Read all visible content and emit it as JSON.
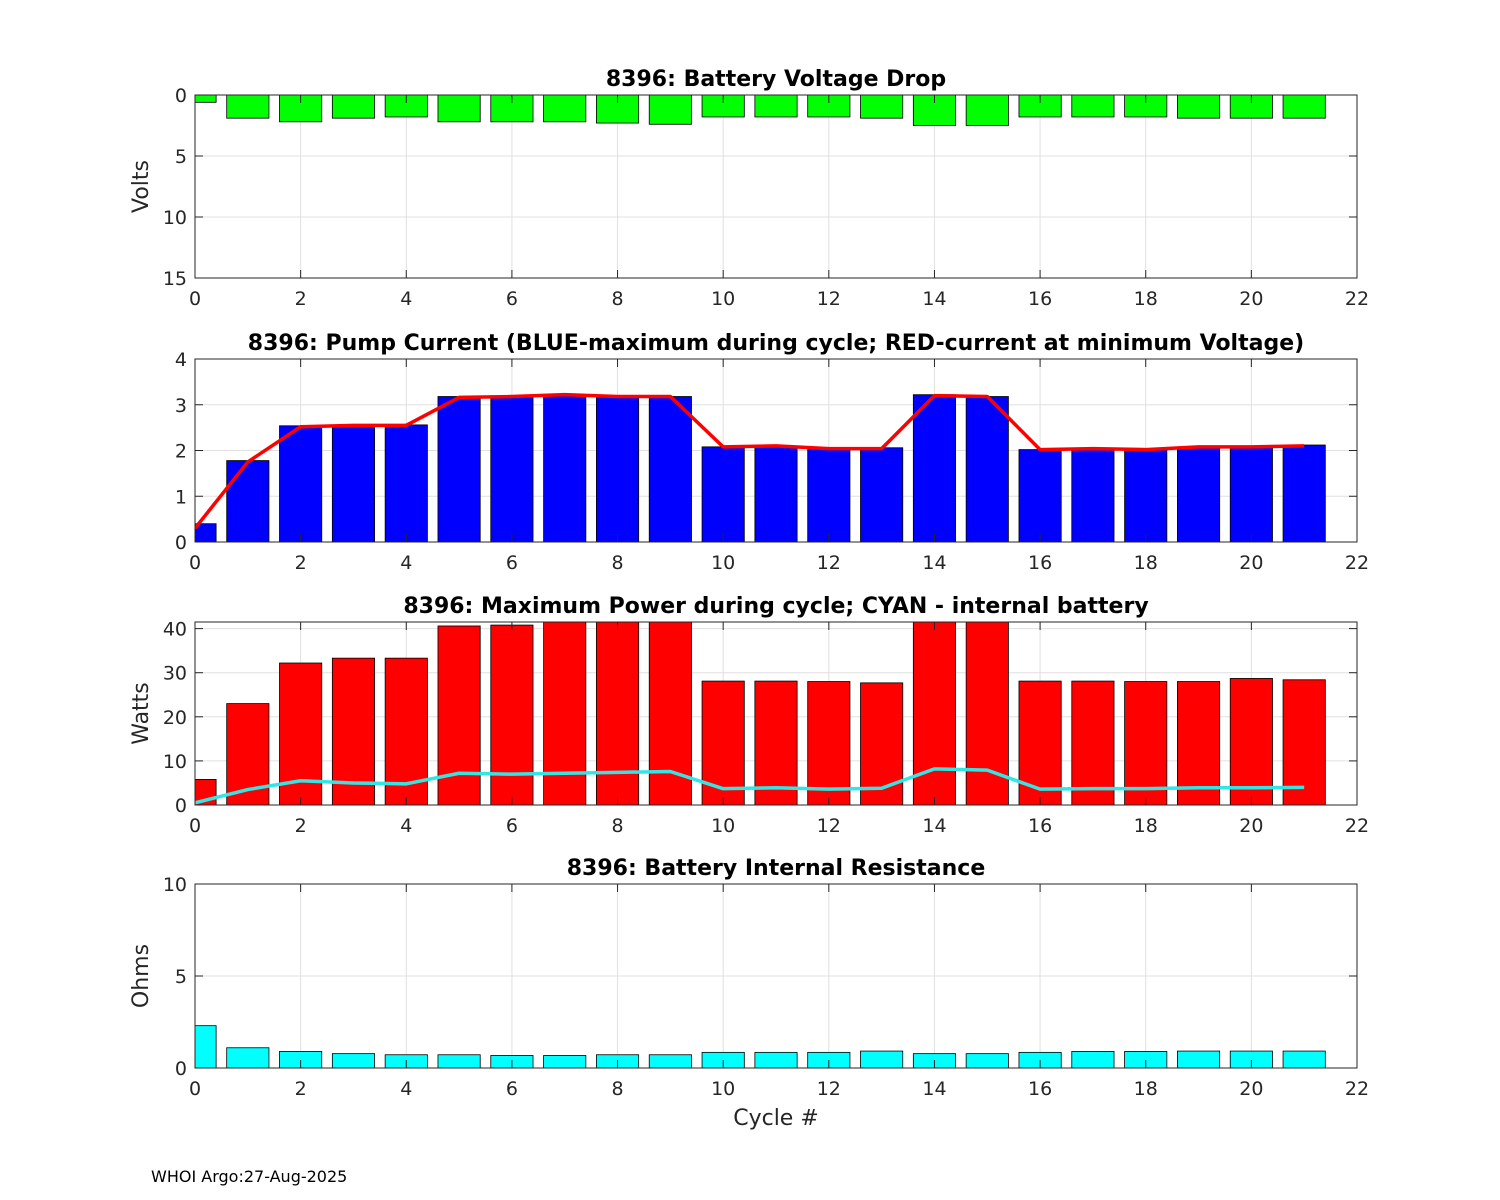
{
  "chart_data": [
    {
      "type": "bar",
      "title": "8396: Battery Voltage Drop",
      "xlabel": "",
      "ylabel": "Volts",
      "xlim": [
        0,
        22
      ],
      "ylim": [
        0,
        15
      ],
      "y_reversed": true,
      "xticks": [
        0,
        2,
        4,
        6,
        8,
        10,
        12,
        14,
        16,
        18,
        20,
        22
      ],
      "yticks": [
        0,
        5,
        10,
        15
      ],
      "grid": true,
      "bar_color": "#00ff00",
      "x": [
        0,
        1,
        2,
        3,
        4,
        5,
        6,
        7,
        8,
        9,
        10,
        11,
        12,
        13,
        14,
        15,
        16,
        17,
        18,
        19,
        20,
        21
      ],
      "values": [
        0.6,
        1.9,
        2.2,
        1.9,
        1.8,
        2.2,
        2.2,
        2.2,
        2.3,
        2.4,
        1.8,
        1.8,
        1.8,
        1.9,
        2.5,
        2.5,
        1.8,
        1.8,
        1.8,
        1.9,
        1.9,
        1.9
      ]
    },
    {
      "type": "bar",
      "title": "8396: Pump Current (BLUE-maximum during cycle; RED-current at minimum Voltage)",
      "xlabel": "",
      "ylabel": "",
      "xlim": [
        0,
        22
      ],
      "ylim": [
        0,
        4
      ],
      "xticks": [
        0,
        2,
        4,
        6,
        8,
        10,
        12,
        14,
        16,
        18,
        20,
        22
      ],
      "yticks": [
        0,
        1,
        2,
        3,
        4
      ],
      "grid": true,
      "bar_color": "#0000ff",
      "line_color": "#ff0000",
      "x": [
        0,
        1,
        2,
        3,
        4,
        5,
        6,
        7,
        8,
        9,
        10,
        11,
        12,
        13,
        14,
        15,
        16,
        17,
        18,
        19,
        20,
        21
      ],
      "series": [
        {
          "name": "maximum during cycle",
          "kind": "bar",
          "values": [
            0.4,
            1.78,
            2.54,
            2.55,
            2.56,
            3.18,
            3.18,
            3.22,
            3.18,
            3.18,
            2.08,
            2.1,
            2.04,
            2.06,
            3.22,
            3.18,
            2.02,
            2.04,
            2.02,
            2.08,
            2.1,
            2.12
          ]
        },
        {
          "name": "current at minimum Voltage",
          "kind": "line",
          "values": [
            0.3,
            1.75,
            2.52,
            2.55,
            2.55,
            3.16,
            3.18,
            3.22,
            3.18,
            3.18,
            2.08,
            2.1,
            2.04,
            2.04,
            3.2,
            3.18,
            2.02,
            2.04,
            2.02,
            2.08,
            2.08,
            2.1
          ]
        }
      ]
    },
    {
      "type": "bar",
      "title": "8396: Maximum Power during cycle; CYAN - internal battery",
      "xlabel": "",
      "ylabel": "Watts",
      "xlim": [
        0,
        22
      ],
      "ylim": [
        0,
        41.5
      ],
      "xticks": [
        0,
        2,
        4,
        6,
        8,
        10,
        12,
        14,
        16,
        18,
        20,
        22
      ],
      "yticks": [
        0,
        10,
        20,
        30,
        40
      ],
      "grid": true,
      "bar_color": "#ff0000",
      "line_color": "#33e6e6",
      "x": [
        0,
        1,
        2,
        3,
        4,
        5,
        6,
        7,
        8,
        9,
        10,
        11,
        12,
        13,
        14,
        15,
        16,
        17,
        18,
        19,
        20,
        21
      ],
      "series": [
        {
          "name": "maximum power",
          "kind": "bar",
          "values": [
            5.8,
            23,
            32.2,
            33.3,
            33.3,
            40.6,
            40.8,
            41.5,
            41.5,
            41.5,
            28.1,
            28.1,
            28,
            27.7,
            41.5,
            41.5,
            28.1,
            28.1,
            28,
            28,
            28.7,
            28.4
          ]
        },
        {
          "name": "internal battery",
          "kind": "line",
          "values": [
            0.5,
            3.5,
            5.5,
            5,
            4.8,
            7.2,
            7,
            7.2,
            7.4,
            7.6,
            3.7,
            3.9,
            3.6,
            3.8,
            8.2,
            7.9,
            3.6,
            3.7,
            3.7,
            3.9,
            3.9,
            4
          ]
        }
      ]
    },
    {
      "type": "bar",
      "title": "8396: Battery Internal Resistance",
      "xlabel": "Cycle #",
      "ylabel": "Ohms",
      "xlim": [
        0,
        22
      ],
      "ylim": [
        0,
        10
      ],
      "xticks": [
        0,
        2,
        4,
        6,
        8,
        10,
        12,
        14,
        16,
        18,
        20,
        22
      ],
      "yticks": [
        0,
        5,
        10
      ],
      "grid": true,
      "bar_color": "#00ffff",
      "x": [
        0,
        1,
        2,
        3,
        4,
        5,
        6,
        7,
        8,
        9,
        10,
        11,
        12,
        13,
        14,
        15,
        16,
        17,
        18,
        19,
        20,
        21
      ],
      "values": [
        2.3,
        1.1,
        0.9,
        0.78,
        0.72,
        0.72,
        0.68,
        0.68,
        0.72,
        0.72,
        0.85,
        0.85,
        0.85,
        0.92,
        0.78,
        0.78,
        0.85,
        0.9,
        0.9,
        0.92,
        0.92,
        0.92
      ]
    }
  ],
  "footer": {
    "text": "WHOI Argo:27-Aug-2025"
  }
}
